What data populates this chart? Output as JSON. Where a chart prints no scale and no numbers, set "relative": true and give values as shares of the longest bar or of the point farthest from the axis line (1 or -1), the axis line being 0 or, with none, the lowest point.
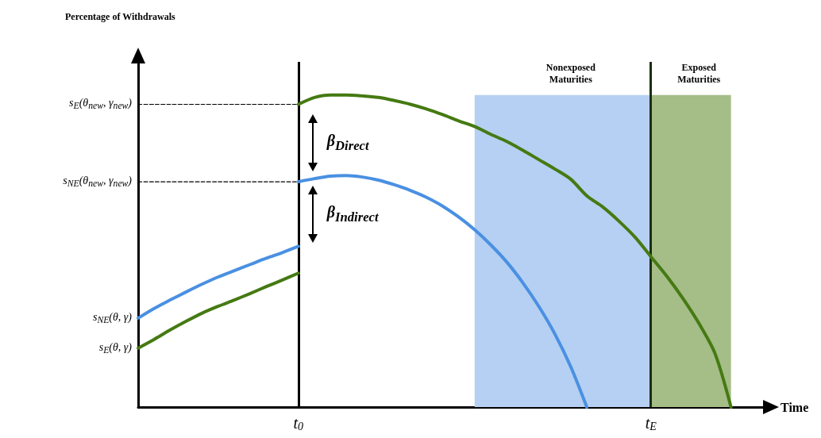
{
  "chart_data": {
    "type": "line",
    "relative": true,
    "xlabel": "Time",
    "categories": [
      null,
      null,
      null,
      null,
      null,
      null,
      null,
      null,
      null,
      null,
      "t$_{0}$",
      null,
      null,
      null,
      null,
      null,
      null,
      null,
      null,
      null,
      null,
      null,
      null,
      null,
      null,
      null,
      null,
      null,
      null,
      null,
      null,
      null,
      "t$_{E}$",
      null,
      null,
      null,
      null,
      null,
      null,
      null
    ],
    "marker": "none",
    "line_style": "solid",
    "grid": false,
    "series": [
      {
        "color": "#457a12",
        "values": [
          0.189,
          0.217,
          0.247,
          0.275,
          0.301,
          0.323,
          0.343,
          0.364,
          0.386,
          0.407,
          0.429,
          null,
          null,
          null,
          null,
          null,
          null,
          null,
          null,
          null,
          null,
          null,
          null,
          null,
          null,
          null,
          null,
          null,
          null,
          null,
          null,
          null,
          null,
          null,
          null,
          null,
          null,
          null,
          null,
          null
        ]
      },
      {
        "color": "#4a90e2",
        "values": [
          0.285,
          0.316,
          0.343,
          0.369,
          0.394,
          0.417,
          0.437,
          0.457,
          0.477,
          0.495,
          0.515,
          null,
          null,
          null,
          null,
          null,
          null,
          null,
          null,
          null,
          null,
          null,
          null,
          null,
          null,
          null,
          null,
          null,
          null,
          null,
          null,
          null,
          null,
          null,
          null,
          null,
          null,
          null,
          null,
          null
        ]
      },
      {
        "color": "#457a12",
        "values": [
          null,
          null,
          null,
          null,
          null,
          null,
          null,
          null,
          null,
          null,
          0.97,
          0.992,
          1,
          1,
          0.997,
          0.992,
          0.982,
          0.97,
          0.955,
          0.937,
          0.917,
          0.899,
          0.874,
          0.851,
          0.823,
          0.793,
          0.763,
          0.73,
          0.677,
          0.641,
          0.596,
          0.545,
          0.482,
          0.419,
          0.348,
          0.268,
          0.172,
          0,
          null,
          null
        ]
      },
      {
        "color": "#4a90e2",
        "values": [
          null,
          null,
          null,
          null,
          null,
          null,
          null,
          null,
          null,
          null,
          0.722,
          0.732,
          0.74,
          0.742,
          0.737,
          0.727,
          0.712,
          0.694,
          0.672,
          0.644,
          0.609,
          0.568,
          0.52,
          0.465,
          0.399,
          0.323,
          0.235,
          0.129,
          0,
          null,
          null,
          null,
          null,
          null,
          null,
          null,
          null,
          null,
          null,
          null
        ]
      },
      {
        "color": "#000000",
        "line_style": "dashed",
        "values": [
          0.97,
          0.97,
          0.97,
          0.97,
          0.97,
          0.97,
          0.97,
          0.97,
          0.97,
          0.97,
          0.97,
          null,
          null,
          null,
          null,
          null,
          null,
          null,
          null,
          null,
          null,
          null,
          null,
          null,
          null,
          null,
          null,
          null,
          null,
          null,
          null,
          null,
          null,
          null,
          null,
          null,
          null,
          null,
          null,
          null
        ]
      },
      {
        "color": "#000000",
        "line_style": "dashed",
        "values": [
          0.722,
          0.722,
          0.722,
          0.722,
          0.722,
          0.722,
          0.722,
          0.722,
          0.722,
          0.722,
          0.722,
          null,
          null,
          null,
          null,
          null,
          null,
          null,
          null,
          null,
          null,
          null,
          null,
          null,
          null,
          null,
          null,
          null,
          null,
          null,
          null,
          null,
          null,
          null,
          null,
          null,
          null,
          null,
          null,
          null
        ]
      }
    ],
    "ref_lines": [
      {
        "axis": "x",
        "value": "t$_{0}$",
        "color": "#000000"
      },
      {
        "axis": "x",
        "value": "t$_{E}$",
        "color": "#1a2e10"
      }
    ],
    "annotations": [
      "s$_{E}$(θ$_{new}$, γ$_{new}$)",
      "s$_{NE}$(θ$_{new}$, γ$_{new}$)",
      "s$_{NE}$(θ, γ)",
      "s$_{E}$(θ, γ)",
      {
        "text": "β$_{Direct}$",
        "x": "t$_{0}$",
        "y": 0.846
      },
      {
        "text": "β$_{Indirect}$",
        "x": "t$_{0}$",
        "y": 0.618
      },
      "Percentage of Withdrawals",
      "Nonexposed Maturities",
      "Exposed Maturities"
    ]
  }
}
